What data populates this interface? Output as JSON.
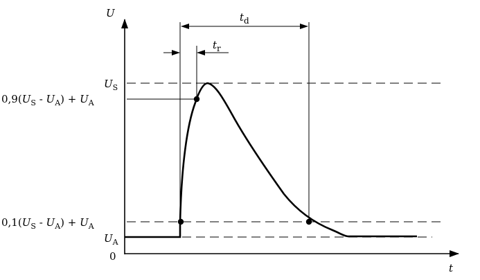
{
  "axes": {
    "y_symbol": "U",
    "x_symbol": "t",
    "origin": "0"
  },
  "levels": {
    "U_S": {
      "base": "U",
      "sub": "S"
    },
    "U_A": {
      "base": "U",
      "sub": "A"
    },
    "upper_expr": {
      "coef": "0,9(",
      "a": "U",
      "a_sub": "S",
      "minus": " - ",
      "b": "U",
      "b_sub": "A",
      "close": ") + ",
      "c": "U",
      "c_sub": "A"
    },
    "lower_expr": {
      "coef": "0,1(",
      "a": "U",
      "a_sub": "S",
      "minus": " - ",
      "b": "U",
      "b_sub": "A",
      "close": ") + ",
      "c": "U",
      "c_sub": "A"
    }
  },
  "dimensions": {
    "t_d": {
      "base": "t",
      "sub": "d"
    },
    "t_r": {
      "base": "t",
      "sub": "r"
    }
  }
}
